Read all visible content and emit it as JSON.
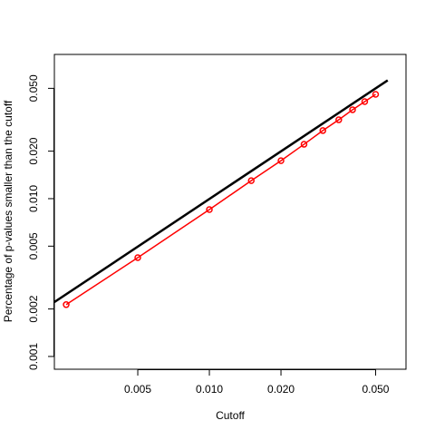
{
  "chart_data": {
    "type": "line",
    "x_label": "Cutoff",
    "y_label": "Percentage of p-values smaller than the cutoff",
    "log_x": true,
    "log_y": true,
    "xlim": [
      0.00223,
      0.0671
    ],
    "ylim": [
      0.00083,
      0.082
    ],
    "xticks": [
      0.005,
      {
        "value": 0.01,
        "label": "0.010"
      },
      {
        "value": 0.02,
        "label": "0.020"
      },
      {
        "value": 0.05,
        "label": "0.050"
      }
    ],
    "yticks": [
      0.001,
      0.002,
      0.005,
      {
        "value": 0.01,
        "label": "0.010"
      },
      {
        "value": 0.02,
        "label": "0.020"
      },
      {
        "value": 0.05,
        "label": "0.050"
      }
    ],
    "series": [
      {
        "color": "#000000",
        "markers": false,
        "x": [
          0.00223,
          0.0562
        ],
        "values": [
          0.00221,
          0.0562
        ]
      },
      {
        "color": "#ff0000",
        "markers": true,
        "x": [
          0.0025,
          0.005,
          0.01,
          0.015,
          0.02,
          0.025,
          0.03,
          0.035,
          0.04,
          0.045,
          0.05
        ],
        "values": [
          0.00213,
          0.00423,
          0.00853,
          0.013,
          0.0174,
          0.0221,
          0.027,
          0.0316,
          0.0366,
          0.0412,
          0.0458
        ]
      }
    ]
  }
}
